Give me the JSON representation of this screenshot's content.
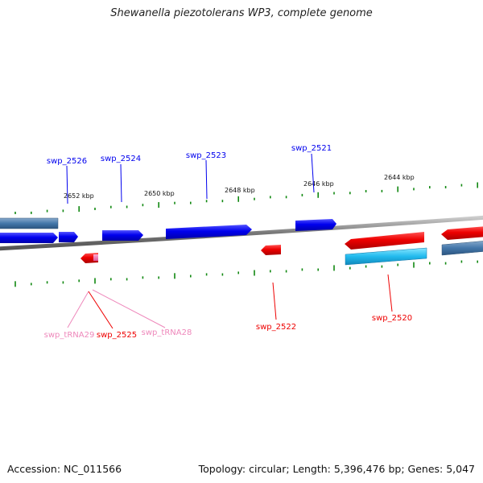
{
  "title": "Shewanella piezotolerans WP3, complete genome",
  "footer": {
    "accession": "Accession: NC_011566",
    "summary": "Topology: circular; Length: 5,396,476 bp; Genes: 5,047"
  },
  "kbp_labels": [
    "2652 kbp",
    "2650 kbp",
    "2648 kbp",
    "2646 kbp",
    "2644 kbp"
  ],
  "genes": {
    "swp_2526": "swp_2526",
    "swp_2524": "swp_2524",
    "swp_2523": "swp_2523",
    "swp_2521": "swp_2521",
    "swp_tRNA29": "swp_tRNA29",
    "swp_2525": "swp_2525",
    "swp_tRNA28": "swp_tRNA28",
    "swp_2522": "swp_2522",
    "swp_2520": "swp_2520"
  },
  "colors": {
    "forward_gene": "#0000ee",
    "reverse_gene": "#ee0000",
    "trna": "#ee88bb",
    "forward_rna_strip": "#4477aa",
    "reverse_rna_strip": "#22bbee",
    "backbone": "#777777",
    "tick": "#118811"
  }
}
